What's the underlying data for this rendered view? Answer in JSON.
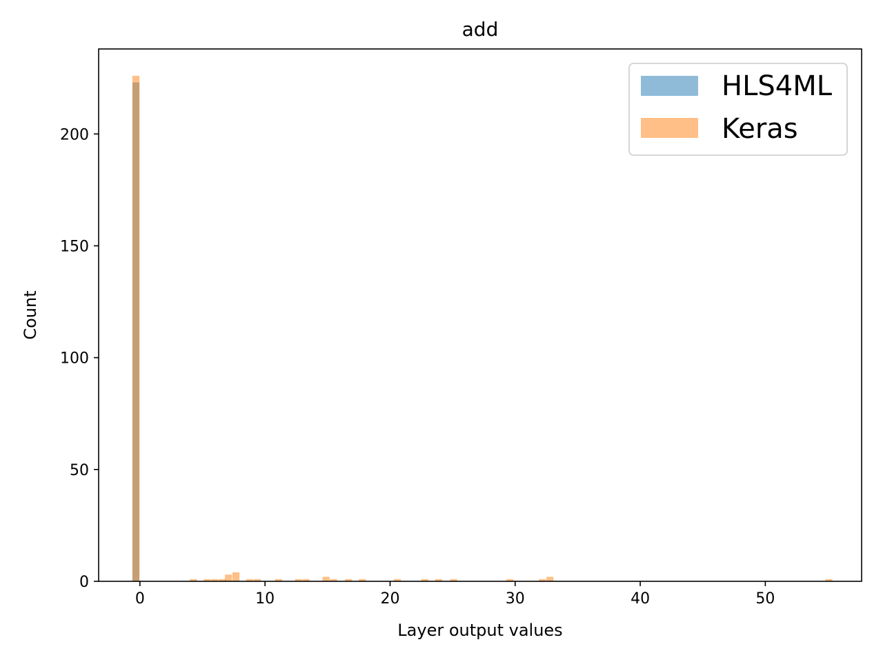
{
  "chart_data": {
    "type": "bar",
    "title": "add",
    "xlabel": "Layer output values",
    "ylabel": "Count",
    "xlim": [
      -3.3,
      57.7
    ],
    "ylim": [
      0,
      238
    ],
    "xticks": [
      0,
      10,
      20,
      30,
      40,
      50
    ],
    "yticks": [
      0,
      50,
      100,
      150,
      200
    ],
    "bin_width": 0.56,
    "legend_position": "upper right",
    "grid": false,
    "series": [
      {
        "name": "HLS4ML",
        "color": "#1f77b4",
        "opacity": 0.5,
        "bins": [
          {
            "x": -0.6,
            "count": 223
          }
        ]
      },
      {
        "name": "Keras",
        "color": "#ff7f0e",
        "opacity": 0.5,
        "bins": [
          {
            "x": -0.6,
            "count": 226
          },
          {
            "x": 4.0,
            "count": 1
          },
          {
            "x": 5.1,
            "count": 1
          },
          {
            "x": 5.7,
            "count": 1
          },
          {
            "x": 6.3,
            "count": 1
          },
          {
            "x": 6.8,
            "count": 3
          },
          {
            "x": 7.4,
            "count": 4
          },
          {
            "x": 8.5,
            "count": 1
          },
          {
            "x": 9.1,
            "count": 1
          },
          {
            "x": 10.8,
            "count": 1
          },
          {
            "x": 12.4,
            "count": 1
          },
          {
            "x": 13.0,
            "count": 1
          },
          {
            "x": 14.6,
            "count": 2
          },
          {
            "x": 15.2,
            "count": 1
          },
          {
            "x": 16.4,
            "count": 1
          },
          {
            "x": 17.5,
            "count": 1
          },
          {
            "x": 20.3,
            "count": 1
          },
          {
            "x": 22.5,
            "count": 1
          },
          {
            "x": 23.6,
            "count": 1
          },
          {
            "x": 24.8,
            "count": 1
          },
          {
            "x": 29.3,
            "count": 1
          },
          {
            "x": 31.9,
            "count": 1
          },
          {
            "x": 32.5,
            "count": 2
          },
          {
            "x": 54.8,
            "count": 1
          }
        ]
      }
    ]
  }
}
